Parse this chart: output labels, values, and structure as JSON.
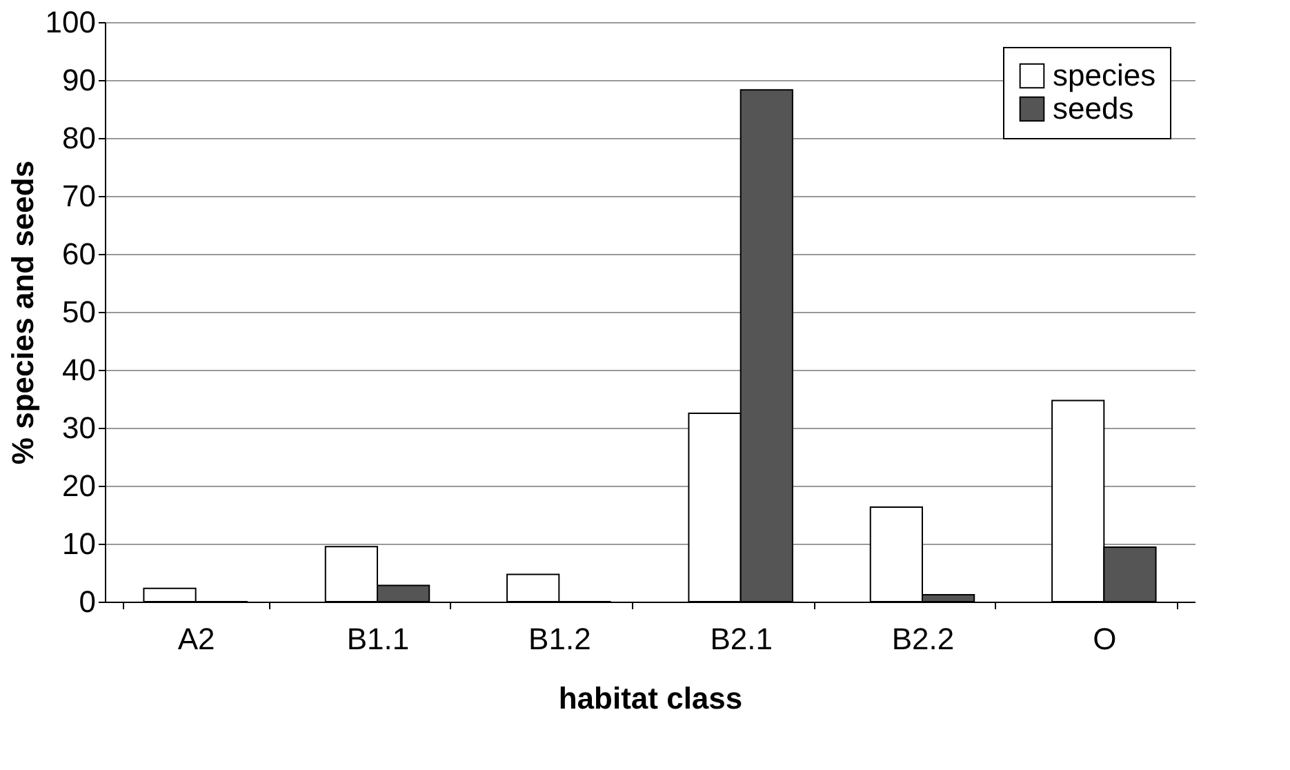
{
  "chart_data": {
    "type": "bar",
    "xlabel": "habitat class",
    "ylabel": "% species and seeds",
    "categories": [
      "A2",
      "B1.1",
      "B1.2",
      "B2.1",
      "B2.2",
      "O"
    ],
    "series": [
      {
        "name": "species",
        "color": "#ffffff",
        "values": [
          2.3,
          9.5,
          4.7,
          32.5,
          16.3,
          34.7
        ]
      },
      {
        "name": "seeds",
        "color": "#555555",
        "values": [
          0,
          2.8,
          0,
          88.3,
          1.2,
          9.4
        ]
      }
    ],
    "ylim": [
      0,
      100
    ],
    "yticks": [
      0,
      10,
      20,
      30,
      40,
      50,
      60,
      70,
      80,
      90,
      100
    ],
    "grid": "y",
    "legend": "top right"
  }
}
